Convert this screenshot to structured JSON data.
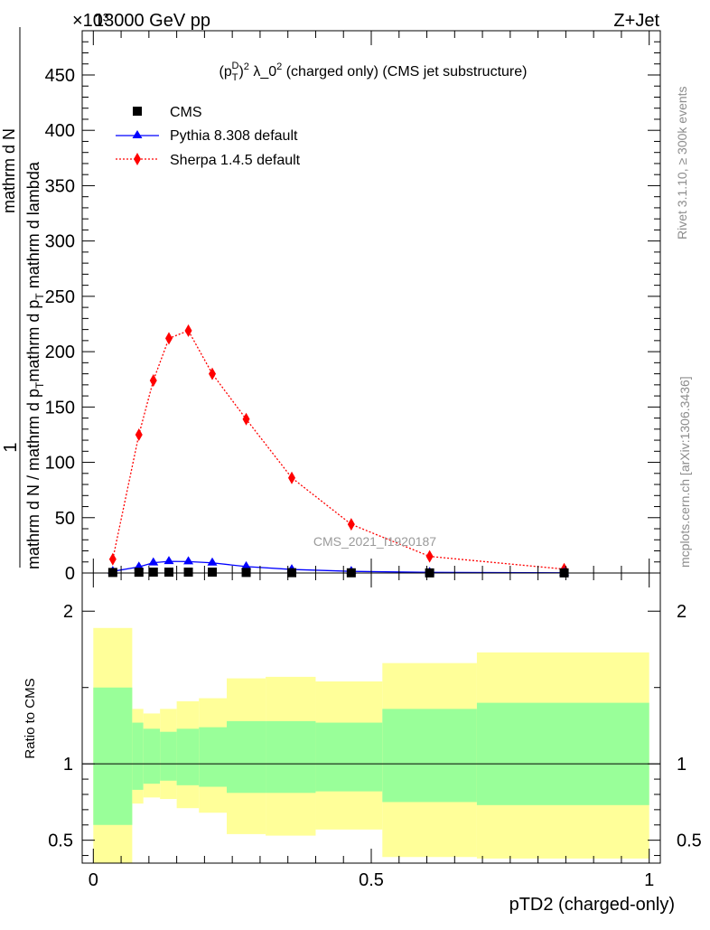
{
  "header": {
    "left_label": "13000 GeV pp",
    "right_label": "Z+Jet",
    "exponent": "×10³"
  },
  "side": {
    "rivet": "Rivet 3.1.10, ≥ 300k events",
    "mcplots": "mcplots.cern.ch [arXiv:1306.3436]"
  },
  "watermark": "CMS_2021_I1920187",
  "colors": {
    "cms": "#000000",
    "pythia": "#0000ff",
    "sherpa": "#ff0000",
    "band_inner": "#99ff99",
    "band_outer": "#ffff99"
  },
  "chart_data": [
    {
      "type": "scatter",
      "panel": "main",
      "title": "(p_T^D)^2 λ_0^2 (charged only) (CMS jet substructure)",
      "title_parts": {
        "p": "(p",
        "sub": "T",
        "sup": "D",
        "close": ")",
        "sq": "2",
        "lam": " λ_0",
        "sq2": "2",
        "rest": " (charged only) (CMS jet substructure)"
      },
      "xlabel": "pTD2 (charged-only)",
      "ylabel": "1 / mathrm d N / mathrm d p_T mathrm d N / mathrm d p_T mathrm d lambda",
      "ylabel_parts": {
        "one": "1",
        "den_a": "mathrm d N / mathrm d p",
        "den_b": "mathrm d p",
        "den_c": " mathrm d lambda",
        "num": "mathrm d N",
        "sub": "T"
      },
      "xlim": [
        -0.02,
        1.02
      ],
      "ylim": [
        0,
        0.49
      ],
      "scale_exponent": 3,
      "ticks_x": [
        0,
        0.5,
        1
      ],
      "tick_labels_x": [
        "0",
        "0.5",
        "1"
      ],
      "ticks_y": [
        0,
        0.05,
        0.1,
        0.15,
        0.2,
        0.25,
        0.3,
        0.35,
        0.4,
        0.45
      ],
      "tick_labels_y": [
        "0",
        "50",
        "100",
        "150",
        "200",
        "250",
        "300",
        "350",
        "400",
        "450"
      ],
      "legend": [
        "CMS",
        "Pythia 8.308 default",
        "Sherpa 1.4.5 default"
      ],
      "legend_position": "top-left",
      "series": [
        {
          "name": "CMS",
          "marker": "square",
          "x": [
            0.035,
            0.082,
            0.108,
            0.136,
            0.171,
            0.214,
            0.275,
            0.357,
            0.464,
            0.605,
            0.847
          ],
          "y": [
            0.0005,
            0.0007,
            0.0008,
            0.0008,
            0.0008,
            0.0008,
            0.0005,
            0.0003,
            0.0002,
            0.0001,
            0.0001
          ]
        },
        {
          "name": "Pythia 8.308 default",
          "marker": "triangle",
          "x": [
            0.035,
            0.082,
            0.108,
            0.136,
            0.171,
            0.214,
            0.275,
            0.357,
            0.464,
            0.605,
            0.847
          ],
          "y": [
            0.0015,
            0.0055,
            0.0093,
            0.0105,
            0.0103,
            0.0092,
            0.0058,
            0.0032,
            0.0015,
            0.0006,
            0.0002
          ]
        },
        {
          "name": "Sherpa 1.4.5 default",
          "marker": "diamond",
          "x": [
            0.035,
            0.082,
            0.108,
            0.136,
            0.171,
            0.214,
            0.275,
            0.357,
            0.464,
            0.605,
            0.847
          ],
          "y": [
            0.0125,
            0.125,
            0.174,
            0.212,
            0.219,
            0.18,
            0.139,
            0.086,
            0.044,
            0.015,
            0.0035
          ],
          "yerr": [
            0.001,
            0.004,
            0.005,
            0.005,
            0.005,
            0.004,
            0.003,
            0.002,
            0.0015,
            0.001,
            0.0005
          ]
        }
      ]
    },
    {
      "type": "area",
      "panel": "ratio",
      "ylabel": "Ratio to CMS",
      "ylim": [
        0.35,
        2.25
      ],
      "ticks_y": [
        0.5,
        1,
        2
      ],
      "tick_labels_y": [
        "0.5",
        "1",
        "2"
      ],
      "reference_line": 1,
      "bins": [
        {
          "x": [
            0,
            0.07
          ],
          "inner": [
            0.6,
            1.5
          ],
          "outer": [
            0.35,
            1.89
          ]
        },
        {
          "x": [
            0.07,
            0.09
          ],
          "inner": [
            0.83,
            1.27
          ],
          "outer": [
            0.74,
            1.36
          ]
        },
        {
          "x": [
            0.09,
            0.12
          ],
          "inner": [
            0.87,
            1.23
          ],
          "outer": [
            0.78,
            1.33
          ]
        },
        {
          "x": [
            0.12,
            0.15
          ],
          "inner": [
            0.89,
            1.21
          ],
          "outer": [
            0.77,
            1.36
          ]
        },
        {
          "x": [
            0.15,
            0.19
          ],
          "inner": [
            0.86,
            1.23
          ],
          "outer": [
            0.71,
            1.41
          ]
        },
        {
          "x": [
            0.19,
            0.24
          ],
          "inner": [
            0.85,
            1.24
          ],
          "outer": [
            0.68,
            1.43
          ]
        },
        {
          "x": [
            0.24,
            0.31
          ],
          "inner": [
            0.81,
            1.28
          ],
          "outer": [
            0.54,
            1.56
          ]
        },
        {
          "x": [
            0.31,
            0.4
          ],
          "inner": [
            0.81,
            1.28
          ],
          "outer": [
            0.53,
            1.57
          ]
        },
        {
          "x": [
            0.4,
            0.52
          ],
          "inner": [
            0.82,
            1.27
          ],
          "outer": [
            0.57,
            1.54
          ]
        },
        {
          "x": [
            0.52,
            0.69
          ],
          "inner": [
            0.75,
            1.36
          ],
          "outer": [
            0.39,
            1.66
          ]
        },
        {
          "x": [
            0.69,
            1.0
          ],
          "inner": [
            0.73,
            1.4
          ],
          "outer": [
            0.38,
            1.73
          ]
        }
      ]
    }
  ]
}
